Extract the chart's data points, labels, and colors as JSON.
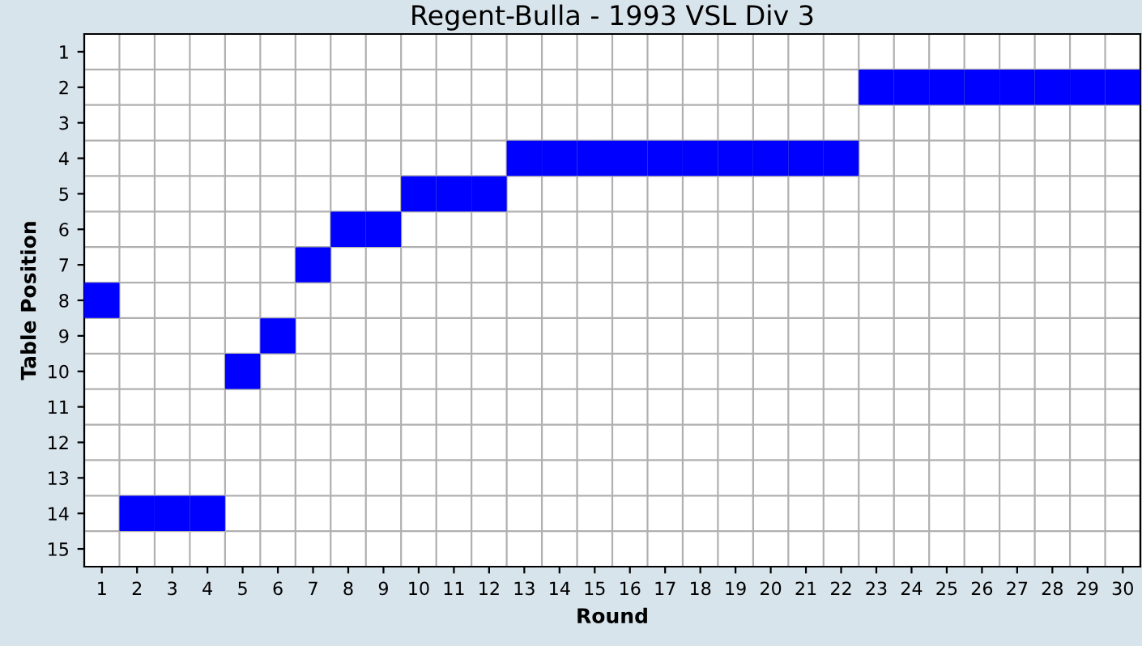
{
  "chart_data": {
    "type": "scatter",
    "title": "Regent-Bulla - 1993 VSL Div 3",
    "xlabel": "Round",
    "ylabel": "Table Position",
    "categories": [
      "1",
      "2",
      "3",
      "4",
      "5",
      "6",
      "7",
      "8",
      "9",
      "10",
      "11",
      "12",
      "13",
      "14",
      "15",
      "16",
      "17",
      "18",
      "19",
      "20",
      "21",
      "22",
      "23",
      "24",
      "25",
      "26",
      "27",
      "28",
      "29",
      "30"
    ],
    "values": [
      8,
      14,
      14,
      14,
      10,
      9,
      7,
      6,
      6,
      5,
      5,
      5,
      4,
      4,
      4,
      4,
      4,
      4,
      4,
      4,
      4,
      4,
      2,
      2,
      2,
      2,
      2,
      2,
      2,
      2
    ],
    "color": "#0000ff",
    "marker": "square",
    "ylim": [
      15.5,
      0.5
    ],
    "yticks": [
      1,
      2,
      3,
      4,
      5,
      6,
      7,
      8,
      9,
      10,
      11,
      12,
      13,
      14,
      15
    ],
    "grid": true,
    "legend": false
  }
}
